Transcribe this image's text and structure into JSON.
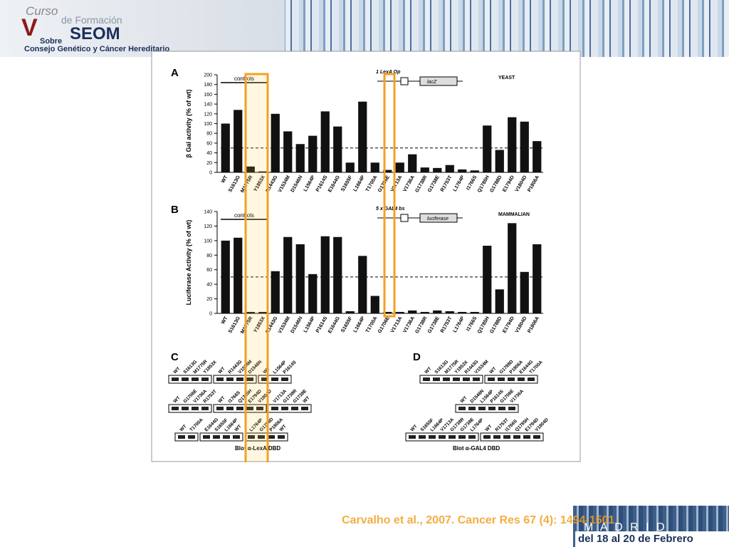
{
  "slide": {
    "logo": {
      "line1": "Curso",
      "line2": "de Formación",
      "line3": "SEOM",
      "line4": "Sobre",
      "line5": "Consejo Genético y Cáncer Hereditario"
    },
    "citation": "Carvalho et al., 2007. Cancer Res 67 (4): 1494-1501",
    "city": "M A D R I D",
    "dates": "del 18 al 20 de Febrero"
  },
  "chart_data": [
    {
      "type": "bar",
      "panel": "A",
      "y_label": "β Gal activity (% of wt)",
      "categories": [
        "WT",
        "S1613G",
        "M1775R",
        "Y1853X",
        "R1443G",
        "V1534M",
        "D1546N",
        "L1564P",
        "P1614S",
        "E1644G",
        "S1655F",
        "L1664P",
        "T1700A",
        "G1706E",
        "V1713A",
        "V1736A",
        "G1738R",
        "G1738E",
        "R1753T",
        "L1764P",
        "I1766S",
        "Q1785H",
        "G1788D",
        "E1794D",
        "V1804D",
        "P1806A"
      ],
      "values": [
        100,
        128,
        12,
        2,
        120,
        84,
        58,
        75,
        125,
        94,
        20,
        145,
        20,
        5,
        20,
        37,
        10,
        9,
        15,
        6,
        4,
        96,
        46,
        113,
        104,
        64
      ],
      "color": "#111111",
      "ylim": [
        0,
        200
      ],
      "yticks": [
        0,
        20,
        40,
        60,
        80,
        100,
        120,
        140,
        160,
        180,
        200
      ],
      "reference_line": 50,
      "annotations": {
        "controls": "controls",
        "construct": "1 LexA Op",
        "reporter": "lacZ",
        "system": "YEAST"
      }
    },
    {
      "type": "bar",
      "panel": "B",
      "y_label": "Luciferase Activity (% of wt)",
      "categories": [
        "WT",
        "S1613G",
        "M1775R",
        "Y1853X",
        "R1443G",
        "V1534M",
        "D1546N",
        "L1564P",
        "P1614S",
        "E1644G",
        "S1655F",
        "L1664P",
        "T1700A",
        "G1706E",
        "V1713A",
        "V1736A",
        "G1738R",
        "G1738E",
        "R1753T",
        "L1764P",
        "I1766S",
        "Q1785H",
        "G1788D",
        "E1794D",
        "V1804D",
        "P1806A"
      ],
      "values": [
        100,
        104,
        2,
        2,
        58,
        105,
        95,
        54,
        106,
        105,
        3,
        79,
        24,
        2,
        2,
        4,
        2,
        4,
        3,
        2,
        2,
        93,
        33,
        124,
        57,
        95
      ],
      "color": "#111111",
      "ylim": [
        0,
        140
      ],
      "yticks": [
        0,
        20,
        40,
        60,
        80,
        100,
        120,
        140
      ],
      "reference_line": 50,
      "annotations": {
        "controls": "controls",
        "construct": "5 x GAL4 bs",
        "reporter": "luciferase",
        "system": "MAMMALIAN"
      }
    }
  ],
  "blots": [
    {
      "panel": "C",
      "caption": "Blot α-LexA DBD",
      "rows": [
        [
          [
            "WT",
            "S1613G",
            "M1775R",
            "Y1853X"
          ],
          [
            "WT",
            "R1443G",
            "V1534M",
            "D1546N"
          ],
          [
            "WT",
            "L1564P",
            "P1614S"
          ]
        ],
        [
          [
            "WT",
            "G1706E",
            "V1736A",
            "R1753T"
          ],
          [
            "WT",
            "I1766S",
            "Q1785H",
            "E1794D",
            "V1804D"
          ],
          [
            "V1713A",
            "G1738R",
            "G1738E",
            "WT"
          ]
        ],
        [
          [
            "WT",
            "T1700A"
          ],
          [
            "E1644G",
            "S1655F",
            "L1664P",
            "WT"
          ],
          [
            "L1764P",
            "G1788D",
            "P1806A",
            "WT"
          ]
        ]
      ]
    },
    {
      "panel": "D",
      "caption": "Blot α-GAL4 DBD",
      "rows": [
        [
          [
            "WT",
            "S1613G",
            "M1775R",
            "Y1853X",
            "R1443G",
            "V1534M"
          ],
          [
            "WT",
            "G1788D",
            "P1806A",
            "E1644G",
            "T1700A"
          ]
        ],
        [
          [
            "WT",
            "D1546N",
            "L1564P",
            "P1614S",
            "G1706E",
            "V1736A"
          ]
        ],
        [
          [
            "WT",
            "S1655F",
            "L1664P",
            "V1713A",
            "G1738R",
            "G1738E",
            "L1764P"
          ],
          [
            "WT",
            "R1753T",
            "I1766S",
            "Q1785H",
            "E1794D",
            "V1804D"
          ]
        ]
      ]
    }
  ]
}
